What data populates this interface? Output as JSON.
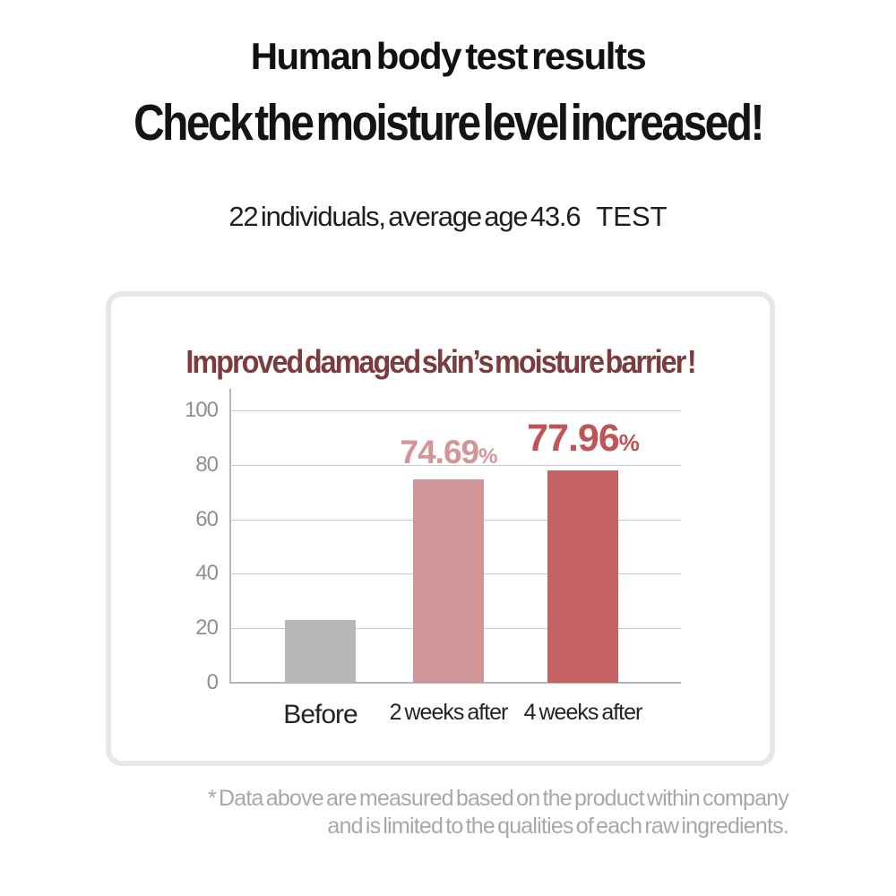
{
  "page": {
    "title1": "Human body test results",
    "title2": "Check the moisture level increased!",
    "subtitle": "22 individuals, average age 43.6",
    "subtitle_tag": "TEST",
    "footnote_line1": "* Data above are measured based on the product within company",
    "footnote_line2": "and is limited to the qualities of each raw ingredients."
  },
  "chart_data": {
    "type": "bar",
    "title": "Improved damaged skin’s moisture barrier !",
    "categories": [
      "Before",
      "2 weeks after",
      "4 weeks after"
    ],
    "values": [
      23,
      74.69,
      77.96
    ],
    "data_labels": [
      "",
      "74.69",
      "77.96"
    ],
    "unit": "%",
    "xlabel": "",
    "ylabel": "",
    "ylim": [
      0,
      100
    ],
    "y_ticks": [
      0,
      20,
      40,
      60,
      80,
      100
    ],
    "grid": true,
    "legend": "none",
    "bar_colors": [
      "#b8b7b7",
      "#d29698",
      "#c56263"
    ],
    "label_colors": [
      "",
      "#d39598",
      "#c05557"
    ],
    "title_color": "#7b3c3d"
  }
}
